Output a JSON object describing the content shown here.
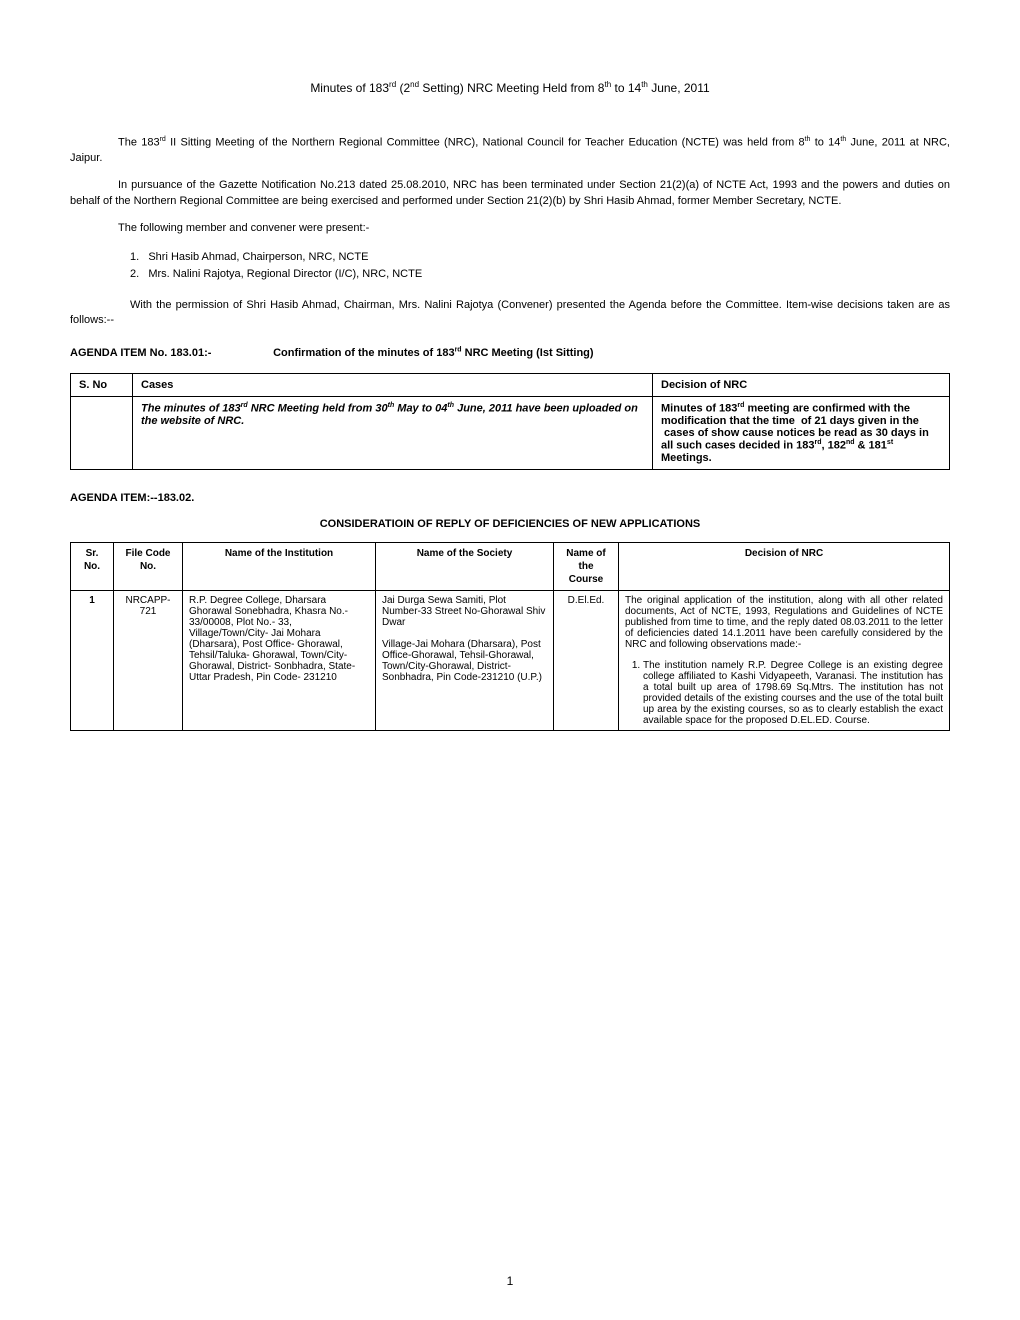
{
  "header_html": "Minutes of 183<sup>rd</sup> (2<sup>nd</sup> Setting) NRC Meeting Held from 8<sup>th</sup> to 14<sup>th</sup> June, 2011",
  "para1_html": "The 183<sup>rd</sup> II Sitting Meeting of the Northern Regional Committee (NRC), National Council for Teacher Education (NCTE) was held from 8<sup>th</sup> to 14<sup>th</sup> June, 2011 at NRC, Jaipur.",
  "para2": "In pursuance of the Gazette Notification No.213 dated 25.08.2010, NRC has been terminated under Section 21(2)(a) of NCTE Act, 1993 and the powers and duties on behalf of the Northern Regional Committee are being exercised and performed under Section 21(2)(b) by Shri Hasib Ahmad, former Member Secretary, NCTE.",
  "para3": "The following member and convener were present:-",
  "members": [
    "Shri Hasib Ahmad,  Chairperson, NRC, NCTE",
    "Mrs. Nalini Rajotya, Regional Director (I/C), NRC, NCTE"
  ],
  "para4": "With the permission of Shri Hasib Ahmad, Chairman, Mrs. Nalini Rajotya (Convener) presented the Agenda before the Committee.  Item-wise decisions taken are as follows:--",
  "agenda1": {
    "num": "AGENDA ITEM No. 183.01:-",
    "title_html": "Confirmation of the minutes of 183<sup>rd</sup> NRC Meeting (Ist Sitting)",
    "table_headers": [
      "S. No",
      "Cases",
      "Decision of NRC"
    ],
    "row_case_html": "The minutes of 183<sup>rd</sup> NRC Meeting held from 30<sup>th</sup> May to 04<sup>th</sup> June, 2011 have been uploaded on the website of NRC.",
    "row_decision_html": "Minutes of 183<sup>rd</sup> meeting are confirmed with the modification that the time &nbsp;of 21 days given in the &nbsp;cases of show cause notices be read as 30 days in all such cases decided in 183<sup>rd</sup>, 182<sup>nd</sup> & 181<sup>st</sup> Meetings."
  },
  "agenda2_num": "AGENDA ITEM:--183.02.",
  "agenda2_sub": "CONSIDERATIOIN OF REPLY OF DEFICIENCIES OF NEW APPLICATIONS",
  "table2": {
    "headers": [
      "Sr. No.",
      "File Code No.",
      "Name of the Institution",
      "Name of the Society",
      "Name of the Course",
      "Decision of NRC"
    ],
    "row": {
      "sr": "1",
      "file": "NRCAPP-721",
      "institution": "R.P. Degree College, Dharsara Ghorawal Sonebhadra, Khasra No.- 33/00008, Plot No.- 33, Village/Town/City- Jai Mohara (Dharsara), Post Office- Ghorawal, Tehsil/Taluka- Ghorawal, Town/City- Ghorawal, District- Sonbhadra, State- Uttar Pradesh, Pin Code- 231210",
      "society": "Jai Durga Sewa Samiti, Plot Number-33 Street No-Ghorawal Shiv Dwar\n\nVillage-Jai Mohara (Dharsara), Post Office-Ghorawal, Tehsil-Ghorawal, Town/City-Ghorawal, District-Sonbhadra, Pin Code-231210 (U.P.)",
      "course": "D.El.Ed.",
      "decision_intro": "The original application of the institution, along with all other related documents, Act of NCTE, 1993, Regulations and Guidelines of NCTE published from time to time, and the reply dated 08.03.2011 to the letter of deficiencies dated 14.1.2011 have been carefully considered by the NRC and following observations made:-",
      "decision_obs_1": "The institution namely R.P. Degree College is an existing degree college affiliated to Kashi Vidyapeeth, Varanasi. The institution has a total built up area of 1798.69 Sq.Mtrs. The institution has not provided details of the existing courses and the use of the total built up area by the existing courses, so as to clearly establish the exact available space for the proposed D.EL.ED. Course."
    }
  },
  "page_number": "1"
}
